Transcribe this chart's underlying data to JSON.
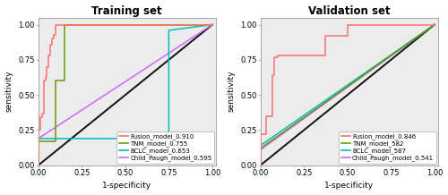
{
  "train": {
    "title": "Training set",
    "fusion": {
      "label": "Fusion_model_0.910",
      "color": "#FF7070",
      "fpr": [
        0.0,
        0.0,
        0.01,
        0.01,
        0.02,
        0.02,
        0.03,
        0.03,
        0.04,
        0.04,
        0.05,
        0.05,
        0.06,
        0.06,
        0.07,
        0.07,
        0.08,
        0.08,
        0.09,
        0.09,
        0.1,
        0.1,
        0.12,
        0.12,
        1.0
      ],
      "tpr": [
        0.0,
        0.25,
        0.25,
        0.34,
        0.34,
        0.37,
        0.37,
        0.6,
        0.6,
        0.63,
        0.63,
        0.7,
        0.7,
        0.78,
        0.78,
        0.86,
        0.86,
        0.9,
        0.9,
        0.93,
        0.93,
        1.0,
        1.0,
        1.0,
        1.0
      ]
    },
    "tnm": {
      "label": "TNM_model_0.755",
      "color": "#669900",
      "fpr": [
        0.0,
        0.0,
        0.1,
        0.1,
        0.15,
        0.15,
        1.0
      ],
      "tpr": [
        0.0,
        0.17,
        0.17,
        0.6,
        0.6,
        1.0,
        1.0
      ]
    },
    "bclc": {
      "label": "BCLC_model_0.653",
      "color": "#00BBBB",
      "fpr": [
        0.0,
        0.0,
        0.75,
        0.75,
        1.0
      ],
      "tpr": [
        0.0,
        0.19,
        0.19,
        0.96,
        1.0
      ]
    },
    "child": {
      "label": "Child_Paugh_model_0.595",
      "color": "#CC66FF",
      "fpr": [
        0.0,
        0.0,
        1.0
      ],
      "tpr": [
        0.0,
        0.19,
        1.0
      ]
    }
  },
  "val": {
    "title": "Validation set",
    "fusion": {
      "label": "Fusion_model_0.846",
      "color": "#FF7070",
      "fpr": [
        0.0,
        0.0,
        0.03,
        0.03,
        0.07,
        0.07,
        0.08,
        0.08,
        0.1,
        0.1,
        0.37,
        0.37,
        0.5,
        0.5,
        1.0
      ],
      "tpr": [
        0.0,
        0.22,
        0.22,
        0.35,
        0.35,
        0.64,
        0.64,
        0.77,
        0.77,
        0.78,
        0.78,
        0.92,
        0.92,
        1.0,
        1.0
      ]
    },
    "tnm": {
      "label": "TNM_model_582",
      "color": "#669900",
      "fpr": [
        0.0,
        0.0,
        1.0
      ],
      "tpr": [
        0.0,
        0.12,
        1.0
      ]
    },
    "bclc": {
      "label": "BCLC_model_587",
      "color": "#00BBBB",
      "fpr": [
        0.0,
        0.0,
        1.0
      ],
      "tpr": [
        0.0,
        0.14,
        1.0
      ]
    },
    "child": {
      "label": "Child_Paugh_model_0.541",
      "color": "#CC66FF",
      "fpr": [
        0.0,
        0.0,
        1.0
      ],
      "tpr": [
        0.0,
        0.11,
        1.0
      ]
    }
  },
  "diagonal": {
    "fpr": [
      0.0,
      1.0
    ],
    "tpr": [
      0.0,
      1.0
    ]
  },
  "xticks": [
    0.0,
    0.25,
    0.5,
    0.75,
    1.0
  ],
  "yticks": [
    0.0,
    0.25,
    0.5,
    0.75,
    1.0
  ],
  "xticklabels": [
    "0.00",
    "0.25",
    "0.50",
    "0.75",
    "1.00"
  ],
  "yticklabels": [
    "0.00",
    "0.25",
    "0.50",
    "0.75",
    "1.00"
  ],
  "xlabel": "1-specificity",
  "ylabel": "sensitivity",
  "legend_fontsize": 5.0,
  "title_fontsize": 8.5,
  "axis_label_fontsize": 6.5,
  "tick_fontsize": 6.0,
  "line_width": 1.1,
  "diag_color": "#111111",
  "diag_lw": 1.4,
  "background_color": "#ffffff",
  "panel_bg": "#ececec"
}
